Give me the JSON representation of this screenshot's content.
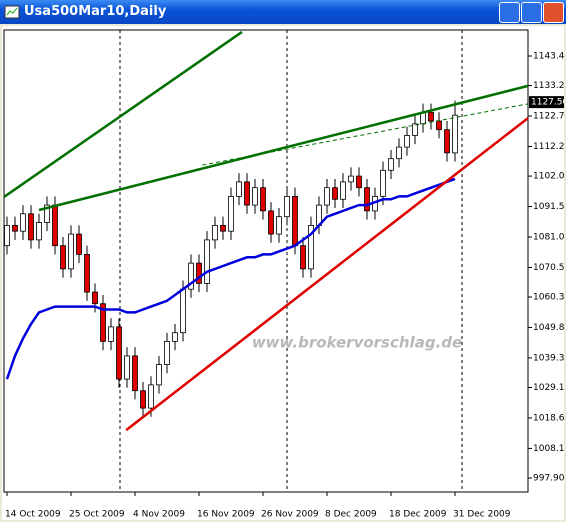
{
  "window": {
    "title": "Usa500Mar10,Daily"
  },
  "chart_data": {
    "type": "candlestick",
    "annotation": "www.brokervorschlag.de",
    "categories": [
      "14 Oct 2009",
      null,
      null,
      null,
      null,
      null,
      null,
      null,
      "25 Oct 2009",
      null,
      null,
      null,
      null,
      null,
      null,
      null,
      "4 Nov 2009",
      null,
      null,
      null,
      null,
      null,
      null,
      null,
      "16 Nov 2009",
      null,
      null,
      null,
      null,
      null,
      null,
      null,
      "26 Nov 2009",
      null,
      null,
      null,
      null,
      null,
      null,
      null,
      "8 Dec 2009",
      null,
      null,
      null,
      null,
      null,
      null,
      null,
      "18 Dec 2009",
      null,
      null,
      null,
      null,
      null,
      null,
      null,
      "31 Dec 2009"
    ],
    "open": [
      1078,
      1085,
      1083,
      1089,
      1080,
      1086,
      1092,
      1078,
      1070,
      1082,
      1075,
      1062,
      1058,
      1045,
      1050,
      1032,
      1040,
      1028,
      1022,
      1030,
      1037,
      1045,
      1048,
      1063,
      1072,
      1065,
      1080,
      1085,
      1083,
      1095,
      1100,
      1092,
      1098,
      1090,
      1082,
      1088,
      1095,
      1078,
      1070,
      1085,
      1092,
      1098,
      1094,
      1100,
      1102,
      1098,
      1090,
      1095,
      1104,
      1108,
      1112,
      1116,
      1120,
      1124,
      1121,
      1118,
      1110
    ],
    "high": [
      1088,
      1088,
      1092,
      1092,
      1089,
      1095,
      1095,
      1081,
      1085,
      1085,
      1078,
      1065,
      1061,
      1053,
      1053,
      1043,
      1043,
      1031,
      1033,
      1040,
      1048,
      1051,
      1066,
      1075,
      1075,
      1083,
      1088,
      1088,
      1098,
      1103,
      1103,
      1101,
      1101,
      1093,
      1091,
      1098,
      1098,
      1081,
      1088,
      1095,
      1101,
      1101,
      1103,
      1105,
      1105,
      1101,
      1098,
      1107,
      1111,
      1115,
      1119,
      1123,
      1127,
      1127,
      1124,
      1121,
      1128
    ],
    "low": [
      1075,
      1080,
      1080,
      1077,
      1077,
      1083,
      1075,
      1067,
      1067,
      1072,
      1059,
      1055,
      1042,
      1042,
      1029,
      1029,
      1025,
      1019,
      1019,
      1027,
      1034,
      1042,
      1045,
      1060,
      1062,
      1062,
      1077,
      1080,
      1080,
      1092,
      1089,
      1089,
      1087,
      1079,
      1079,
      1085,
      1075,
      1067,
      1067,
      1082,
      1089,
      1091,
      1091,
      1097,
      1095,
      1087,
      1087,
      1092,
      1101,
      1105,
      1109,
      1113,
      1117,
      1118,
      1115,
      1107,
      1107
    ],
    "close": [
      1085,
      1083,
      1089,
      1080,
      1086,
      1092,
      1078,
      1070,
      1082,
      1075,
      1062,
      1058,
      1045,
      1050,
      1032,
      1040,
      1028,
      1022,
      1030,
      1037,
      1045,
      1048,
      1063,
      1072,
      1065,
      1080,
      1085,
      1083,
      1095,
      1100,
      1092,
      1098,
      1090,
      1082,
      1088,
      1095,
      1078,
      1070,
      1085,
      1092,
      1098,
      1094,
      1100,
      1102,
      1098,
      1090,
      1095,
      1104,
      1108,
      1112,
      1116,
      1120,
      1124,
      1121,
      1118,
      1110,
      1123
    ],
    "up_color": "#ffffff",
    "down_color": "#e00000",
    "series": [
      {
        "color": "#0000dd",
        "values": [
          1032,
          1040,
          1046,
          1051,
          1055,
          1056,
          1057,
          1057,
          1057,
          1057,
          1057,
          1057,
          1056,
          1056,
          1056,
          1055,
          1055,
          1056,
          1057,
          1058,
          1059,
          1061,
          1063,
          1065,
          1067,
          1069,
          1070,
          1071,
          1072,
          1073,
          1074,
          1074,
          1075,
          1075,
          1076,
          1077,
          1078,
          1080,
          1082,
          1085,
          1088,
          1089,
          1090,
          1091,
          1092,
          1092,
          1093,
          1094,
          1094,
          1095,
          1095,
          1096,
          1097,
          1098,
          1099,
          1100,
          1101
        ]
      }
    ],
    "trend_lines": [
      {
        "color": "#007000",
        "dashed": false,
        "x": [
          -0.375,
          29.375
        ],
        "y": [
          1094.8,
          1151.7
        ]
      },
      {
        "color": "#007000",
        "dashed": false,
        "x": [
          4,
          65.125
        ],
        "y": [
          1090.3,
          1133.1
        ]
      },
      {
        "color": "#007000",
        "dashed": true,
        "x": [
          24.4,
          65.125
        ],
        "y": [
          1105.8,
          1126.9
        ]
      },
      {
        "color": "#e00000",
        "dashed": false,
        "x": [
          14.9,
          65.125
        ],
        "y": [
          1014.4,
          1122.0
        ]
      }
    ],
    "current_price": {
      "value": 1127.5,
      "label": "1127.50"
    },
    "xlim": [
      -0.375,
      65.125
    ],
    "ylim": [
      993.07,
      1152.37
    ],
    "yticks": [
      {
        "value": 1143.4,
        "label": "1143.40"
      },
      {
        "value": 1133.2,
        "label": "1133.20"
      },
      {
        "value": 1122.7,
        "label": "1122.70"
      },
      {
        "value": 1112.2,
        "label": "1112.20"
      },
      {
        "value": 1102,
        "label": "1102.00"
      },
      {
        "value": 1091.5,
        "label": "1091.50"
      },
      {
        "value": 1081,
        "label": "1081.00"
      },
      {
        "value": 1070.5,
        "label": "1070.50"
      },
      {
        "value": 1060.3,
        "label": "1060.30"
      },
      {
        "value": 1049.8,
        "label": "1049.80"
      },
      {
        "value": 1039.3,
        "label": "1039.30"
      },
      {
        "value": 1029.1,
        "label": "1029.10"
      },
      {
        "value": 1018.6,
        "label": "1018.60"
      },
      {
        "value": 1008.1,
        "label": "1008.10"
      },
      {
        "value": 997.9,
        "label": "997.90"
      }
    ]
  }
}
